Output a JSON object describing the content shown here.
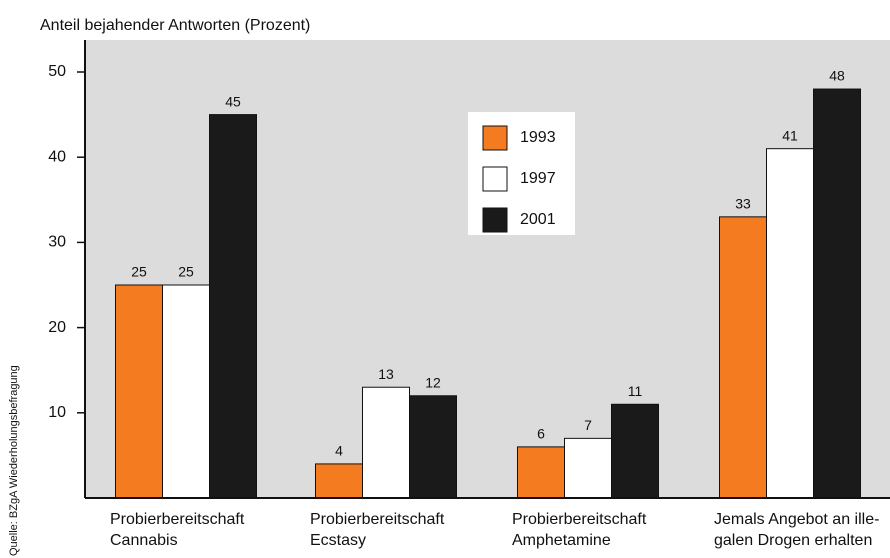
{
  "chart_data": {
    "type": "bar",
    "title": "Anteil bejahender Antworten (Prozent)",
    "source": "Quelle: BZgA Wiederholungsbefragung",
    "categories": [
      [
        "Probierbereitschaft",
        "Cannabis"
      ],
      [
        "Probierbereitschaft",
        "Ecstasy"
      ],
      [
        "Probierbereitschaft",
        "Amphetamine"
      ],
      [
        "Jemals Angebot an ille-",
        "galen Drogen erhalten"
      ]
    ],
    "series": [
      {
        "name": "1993",
        "color": "#f47b20",
        "values": [
          25,
          4,
          6,
          33
        ]
      },
      {
        "name": "1997",
        "color": "#ffffff",
        "values": [
          25,
          13,
          7,
          41
        ]
      },
      {
        "name": "2001",
        "color": "#1a1a1a",
        "values": [
          45,
          12,
          11,
          48
        ]
      }
    ],
    "ylim": [
      0,
      50
    ],
    "yticks": [
      10,
      20,
      30,
      40,
      50
    ]
  }
}
